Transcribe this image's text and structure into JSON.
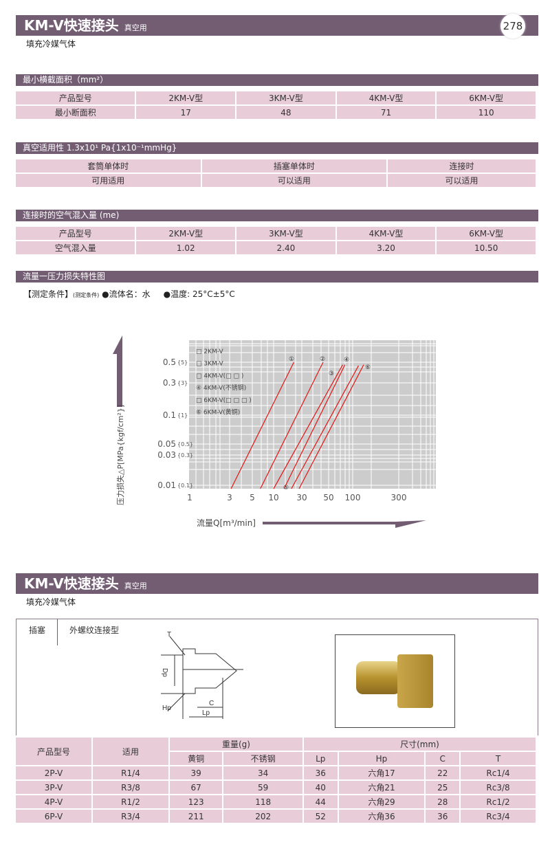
{
  "header": {
    "title": "KM-V快速接头",
    "title_suffix": "真空用",
    "subtitle": "填充冷媒气体",
    "page_number": "278"
  },
  "section_area": {
    "title": "最小横截面积（mm²）",
    "headers": [
      "产品型号",
      "2KM-V型",
      "3KM-V型",
      "4KM-V型",
      "6KM-V型"
    ],
    "row": [
      "最小断面积",
      "17",
      "48",
      "71",
      "110"
    ]
  },
  "section_vacuum": {
    "title": "真空适用性 1.3x10¹ Pa{1x10⁻¹mmHg}",
    "headers": [
      "套筒单体时",
      "插塞单体时",
      "连接时"
    ],
    "row": [
      "可用适用",
      "可以适用",
      "可以适用"
    ]
  },
  "section_air": {
    "title": "连接时的空气混入量 (me)",
    "headers": [
      "产品型号",
      "2KM-V型",
      "3KM-V型",
      "4KM-V型",
      "6KM-V型"
    ],
    "row": [
      "空气混入量",
      "1.02",
      "2.40",
      "3.20",
      "10.50"
    ]
  },
  "section_chart": {
    "title": "流量一压力损失特性图",
    "cond_label": "【测定条件】",
    "cond_small": "(测定条件)",
    "fluid": "●流体名：水",
    "temp": "●温度: 25°C±5°C"
  },
  "chart_data": {
    "type": "line",
    "xlabel": "流量Q[m³/min]",
    "ylabel": "压力损失△P[MPa{kgf/cm²}]",
    "x_scale": "log",
    "y_scale": "log",
    "grid": true,
    "background": "#cccccc",
    "line_color": "#e0201e",
    "x_ticks": [
      "1",
      "3",
      "5",
      "10",
      "30",
      "50",
      "100",
      "300"
    ],
    "y_ticks": [
      {
        "v": "0.5",
        "alt": "{5}"
      },
      {
        "v": "0.3",
        "alt": "{3}"
      },
      {
        "v": "0.1",
        "alt": "{1}"
      },
      {
        "v": "0.05",
        "alt": "{0.5}"
      },
      {
        "v": "0.03",
        "alt": "{0.3}"
      },
      {
        "v": "0.01",
        "alt": "{0.1}"
      }
    ],
    "legend": [
      "□ 2KM-V",
      "□ 3KM-V",
      "□ 4KM-V(□ □ )",
      "④ 4KM-V(不锈钢)",
      "□ 6KM-V(□ □ □ )",
      "⑥ 6KM-V(黄铜)"
    ],
    "series": [
      {
        "marker": "①",
        "x": [
          3.1,
          22
        ],
        "y": [
          0.01,
          0.5
        ]
      },
      {
        "marker": "②",
        "x": [
          6.5,
          45
        ],
        "y": [
          0.01,
          0.5
        ]
      },
      {
        "marker": "③",
        "x": [
          10,
          75
        ],
        "y": [
          0.01,
          0.47
        ]
      },
      {
        "marker": "④",
        "x": [
          15,
          80
        ],
        "y": [
          0.01,
          0.47
        ]
      },
      {
        "marker": "⑤",
        "x": [
          20,
          115
        ],
        "y": [
          0.01,
          0.46
        ]
      },
      {
        "marker": "⑥",
        "x": [
          27,
          130
        ],
        "y": [
          0.01,
          0.47
        ]
      }
    ]
  },
  "header2": {
    "title": "KM-V快速接头",
    "title_suffix": "真空用",
    "subtitle": "填充冷媒气体"
  },
  "product": {
    "type_label": "插塞",
    "connection": "外螺纹连接型",
    "dims": {
      "T": "T",
      "Dp": "Dp",
      "Hp": "Hp",
      "C": "C",
      "Lp": "Lp"
    }
  },
  "spec_table": {
    "h_model": "产品型号",
    "h_apply": "适用",
    "h_weight": "重量(g)",
    "h_size": "尺寸(mm)",
    "sub": [
      "黄铜",
      "不锈钢",
      "Lp",
      "Hp",
      "C",
      "T"
    ],
    "rows": [
      [
        "2P-V",
        "R1/4",
        "39",
        "34",
        "36",
        "六角17",
        "22",
        "Rc1/4"
      ],
      [
        "3P-V",
        "R3/8",
        "67",
        "59",
        "40",
        "六角21",
        "25",
        "Rc3/8"
      ],
      [
        "4P-V",
        "R1/2",
        "123",
        "118",
        "44",
        "六角29",
        "28",
        "Rc1/2"
      ],
      [
        "6P-V",
        "R3/4",
        "211",
        "202",
        "52",
        "六角36",
        "36",
        "Rc3/4"
      ]
    ]
  },
  "colors": {
    "brand": "#735d73",
    "cell": "#e8ccd8"
  }
}
